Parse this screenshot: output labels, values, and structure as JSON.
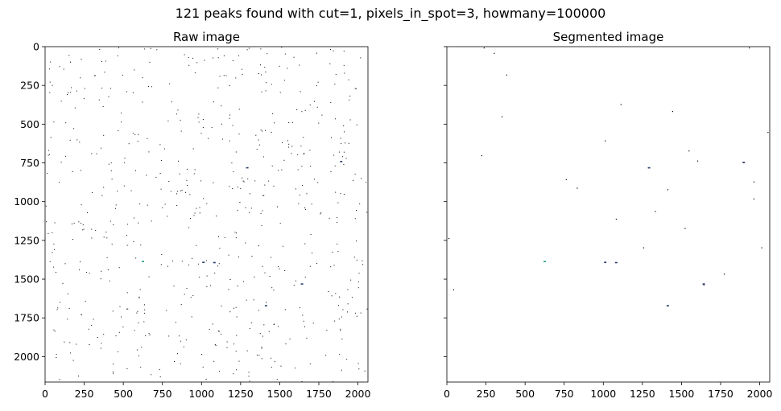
{
  "figure": {
    "suptitle": "121 peaks found with cut=1, pixels_in_spot=3, howmany=100000"
  },
  "chart_data": [
    {
      "type": "heatmap",
      "title": "Raw image",
      "xlim": [
        0,
        2064
      ],
      "ylim": [
        2164,
        0
      ],
      "x_ticks": [
        "0",
        "250",
        "500",
        "750",
        "1000",
        "1250",
        "1500",
        "1750",
        "2000"
      ],
      "y_ticks": [
        "0",
        "250",
        "500",
        "750",
        "1000",
        "1250",
        "1500",
        "1750",
        "2000"
      ],
      "y_tick_labels_visible": true,
      "background": "#ffffff",
      "dot_color": "#000000",
      "sparse_pixel_count_approx": 620,
      "highlights": [
        {
          "x": 623,
          "y": 1385,
          "color": "#1f9e89"
        },
        {
          "x": 1010,
          "y": 1390,
          "color": "#2a3b6b"
        },
        {
          "x": 1080,
          "y": 1392,
          "color": "#2a3b6b"
        },
        {
          "x": 1290,
          "y": 780,
          "color": "#2a3b6b"
        },
        {
          "x": 1410,
          "y": 1670,
          "color": "#2a3b6b"
        },
        {
          "x": 1640,
          "y": 1530,
          "color": "#2a3b6b"
        },
        {
          "x": 1890,
          "y": 740,
          "color": "#2a3b6b"
        }
      ]
    },
    {
      "type": "heatmap",
      "title": "Segmented image",
      "xlim": [
        0,
        2064
      ],
      "ylim": [
        2164,
        0
      ],
      "x_ticks": [
        "0",
        "250",
        "500",
        "750",
        "1000",
        "1250",
        "1500",
        "1750",
        "2000"
      ],
      "y_ticks": [
        "0",
        "250",
        "500",
        "750",
        "1000",
        "1250",
        "1500",
        "1750",
        "2000"
      ],
      "y_tick_labels_visible": false,
      "background": "#ffffff",
      "dot_color": "#000000",
      "peaks": [
        {
          "x": 40,
          "y": 1565
        },
        {
          "x": 10,
          "y": 1235
        },
        {
          "x": 235,
          "y": 5
        },
        {
          "x": 300,
          "y": 40
        },
        {
          "x": 380,
          "y": 180
        },
        {
          "x": 350,
          "y": 450
        },
        {
          "x": 220,
          "y": 700
        },
        {
          "x": 760,
          "y": 855
        },
        {
          "x": 830,
          "y": 910
        },
        {
          "x": 1010,
          "y": 605
        },
        {
          "x": 1110,
          "y": 370
        },
        {
          "x": 1080,
          "y": 1110
        },
        {
          "x": 1290,
          "y": 780
        },
        {
          "x": 1255,
          "y": 1295
        },
        {
          "x": 1330,
          "y": 1060
        },
        {
          "x": 1410,
          "y": 920
        },
        {
          "x": 1440,
          "y": 415
        },
        {
          "x": 1520,
          "y": 1170
        },
        {
          "x": 1600,
          "y": 735
        },
        {
          "x": 1545,
          "y": 670
        },
        {
          "x": 1770,
          "y": 1465
        },
        {
          "x": 1895,
          "y": 745
        },
        {
          "x": 1960,
          "y": 980
        },
        {
          "x": 1960,
          "y": 870
        },
        {
          "x": 2010,
          "y": 1295
        },
        {
          "x": 2050,
          "y": 550
        },
        {
          "x": 1930,
          "y": 5
        },
        {
          "x": 1640,
          "y": 1535
        },
        {
          "x": 1410,
          "y": 1670
        },
        {
          "x": 1010,
          "y": 1390
        }
      ],
      "highlights": [
        {
          "x": 623,
          "y": 1385,
          "color": "#1f9e89"
        },
        {
          "x": 1010,
          "y": 1390,
          "color": "#2a3b6b"
        },
        {
          "x": 1080,
          "y": 1392,
          "color": "#2a3b6b"
        },
        {
          "x": 1290,
          "y": 780,
          "color": "#2a3b6b"
        },
        {
          "x": 1410,
          "y": 1670,
          "color": "#2a3b6b"
        },
        {
          "x": 1640,
          "y": 1530,
          "color": "#2a3b6b"
        },
        {
          "x": 1895,
          "y": 745,
          "color": "#2a3b6b"
        }
      ]
    }
  ]
}
